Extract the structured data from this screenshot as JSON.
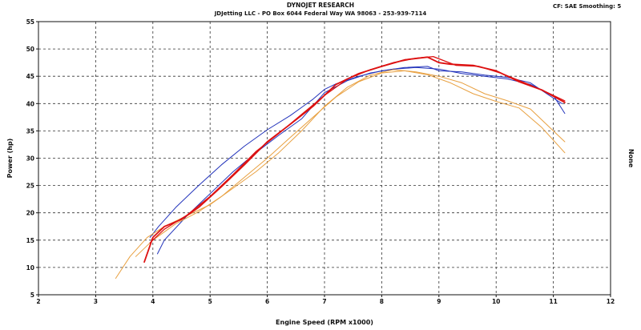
{
  "header": {
    "title": "DYNOJET RESEARCH",
    "subtitle": "JDJetting LLC - PO Box 6044 Federal Way WA 98063 - 253-939-7114",
    "settings": "CF: SAE  Smoothing: 5"
  },
  "chart_data": {
    "type": "line",
    "title": "DYNOJET RESEARCH",
    "xlabel": "Engine Speed (RPM x1000)",
    "ylabel": "Power (hp)",
    "y2label": "None",
    "xlim": [
      2,
      12
    ],
    "ylim": [
      5,
      55
    ],
    "xticks": [
      2,
      3,
      4,
      5,
      6,
      7,
      8,
      9,
      10,
      11,
      12
    ],
    "yticks": [
      5,
      10,
      15,
      20,
      25,
      30,
      35,
      40,
      45,
      50,
      55
    ],
    "grid": true,
    "series": [
      {
        "color": "#2233bb",
        "width": 1,
        "x": [
          3.95,
          4.1,
          4.4,
          4.8,
          5.2,
          5.6,
          6.0,
          6.4,
          6.8,
          7.0,
          7.2,
          7.6,
          8.0,
          8.4,
          8.8,
          9.0,
          9.4,
          9.8,
          10.2,
          10.6,
          11.0,
          11.15
        ],
        "y": [
          15.5,
          17.5,
          21.0,
          25.0,
          28.8,
          32.2,
          35.2,
          37.8,
          40.8,
          42.6,
          43.6,
          45.0,
          46.0,
          46.6,
          46.8,
          46.0,
          45.8,
          45.2,
          44.8,
          43.8,
          41.0,
          40.0
        ]
      },
      {
        "color": "#2233bb",
        "width": 1,
        "x": [
          4.08,
          4.2,
          4.6,
          5.0,
          5.4,
          5.8,
          6.2,
          6.6,
          7.0,
          7.4,
          7.8,
          8.2,
          8.6,
          9.0,
          9.4,
          9.8,
          10.2,
          10.6,
          11.0,
          11.2
        ],
        "y": [
          12.5,
          15.0,
          19.5,
          23.5,
          27.5,
          31.0,
          34.2,
          37.2,
          42.0,
          44.2,
          45.6,
          46.3,
          46.6,
          46.3,
          45.5,
          45.0,
          44.5,
          43.5,
          41.5,
          38.2
        ]
      },
      {
        "color": "#e8a040",
        "width": 1,
        "x": [
          3.35,
          3.6,
          3.9,
          4.2,
          4.6,
          5.0,
          5.4,
          5.8,
          6.2,
          6.6,
          7.0,
          7.4,
          7.8,
          8.2,
          8.6,
          9.0,
          9.4,
          9.8,
          10.2,
          10.6,
          10.9,
          11.2
        ],
        "y": [
          8.0,
          12.0,
          15.5,
          17.5,
          19.5,
          21.5,
          24.5,
          27.5,
          31.0,
          35.0,
          39.5,
          43.0,
          45.2,
          46.2,
          45.8,
          45.0,
          43.8,
          41.8,
          40.5,
          39.0,
          36.0,
          33.0
        ]
      },
      {
        "color": "#e8a040",
        "width": 1,
        "x": [
          3.7,
          4.0,
          4.4,
          4.8,
          5.2,
          5.6,
          6.0,
          6.4,
          6.8,
          7.2,
          7.6,
          8.0,
          8.4,
          8.8,
          9.2,
          9.6,
          10.0,
          10.4,
          10.8,
          11.2
        ],
        "y": [
          12.0,
          15.0,
          18.0,
          20.2,
          23.0,
          26.5,
          30.0,
          33.8,
          37.5,
          41.2,
          44.0,
          45.6,
          46.0,
          45.3,
          43.8,
          41.8,
          40.4,
          39.2,
          35.6,
          31.0
        ]
      },
      {
        "color": "#dd1111",
        "width": 1.8,
        "x": [
          3.85,
          4.0,
          4.2,
          4.5,
          4.8,
          5.2,
          5.6,
          6.0,
          6.4,
          6.8,
          7.2,
          7.6,
          8.0,
          8.4,
          8.8,
          9.0,
          9.2,
          9.6,
          10.0,
          10.4,
          10.8,
          11.2
        ],
        "y": [
          11.0,
          15.5,
          17.5,
          18.8,
          21.0,
          24.8,
          28.8,
          33.0,
          36.2,
          39.5,
          43.5,
          45.5,
          46.8,
          48.0,
          48.5,
          47.5,
          47.2,
          47.0,
          46.0,
          44.0,
          42.5,
          40.2
        ]
      },
      {
        "color": "#dd1111",
        "width": 1.3,
        "x": [
          3.95,
          4.2,
          4.6,
          5.0,
          5.4,
          5.8,
          6.2,
          6.6,
          7.0,
          7.4,
          7.8,
          8.2,
          8.6,
          8.9,
          9.3,
          9.7,
          10.1,
          10.5,
          10.9,
          11.2
        ],
        "y": [
          14.5,
          17.0,
          19.6,
          23.0,
          27.0,
          31.2,
          34.5,
          38.0,
          41.5,
          44.5,
          46.2,
          47.5,
          48.3,
          48.6,
          47.0,
          46.8,
          45.5,
          43.8,
          42.0,
          40.5
        ]
      }
    ]
  }
}
